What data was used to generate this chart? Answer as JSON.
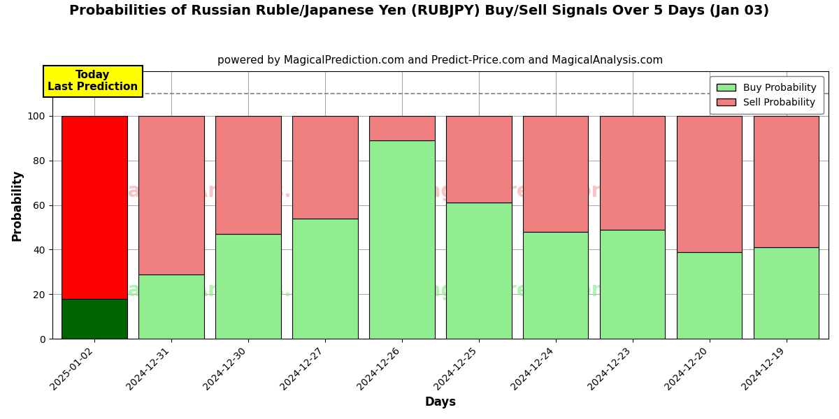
{
  "title": "Probabilities of Russian Ruble/Japanese Yen (RUBJPY) Buy/Sell Signals Over 5 Days (Jan 03)",
  "subtitle": "powered by MagicalPrediction.com and Predict-Price.com and MagicalAnalysis.com",
  "xlabel": "Days",
  "ylabel": "Probability",
  "categories": [
    "2025-01-02",
    "2024-12-31",
    "2024-12-30",
    "2024-12-27",
    "2024-12-26",
    "2024-12-25",
    "2024-12-24",
    "2024-12-23",
    "2024-12-20",
    "2024-12-19"
  ],
  "buy_values": [
    18,
    29,
    47,
    54,
    89,
    61,
    48,
    49,
    39,
    41
  ],
  "sell_values": [
    82,
    71,
    53,
    46,
    11,
    39,
    52,
    51,
    61,
    59
  ],
  "buy_colors": [
    "#006400",
    "#90EE90",
    "#90EE90",
    "#90EE90",
    "#90EE90",
    "#90EE90",
    "#90EE90",
    "#90EE90",
    "#90EE90",
    "#90EE90"
  ],
  "sell_colors": [
    "#FF0000",
    "#F08080",
    "#F08080",
    "#F08080",
    "#F08080",
    "#F08080",
    "#F08080",
    "#F08080",
    "#F08080",
    "#F08080"
  ],
  "today_label": "Today\nLast Prediction",
  "today_box_color": "#FFFF00",
  "dashed_line_y": 110,
  "ylim": [
    0,
    120
  ],
  "yticks": [
    0,
    20,
    40,
    60,
    80,
    100
  ],
  "legend_buy_color": "#90EE90",
  "legend_sell_color": "#F08080",
  "background_color": "#ffffff",
  "bar_width": 0.85,
  "title_fontsize": 14,
  "subtitle_fontsize": 11,
  "axis_label_fontsize": 12
}
